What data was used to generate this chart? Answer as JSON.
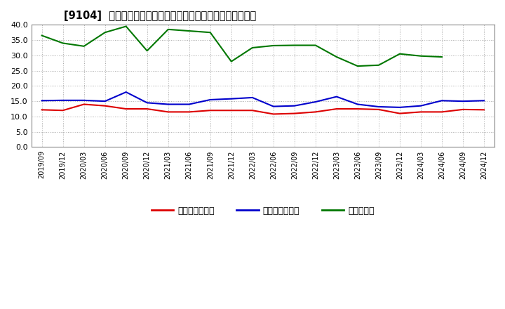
{
  "title": "[9104]  売上債権回転率、買入債務回転率、在庫回転率の推移",
  "x_labels": [
    "2019/09",
    "2019/12",
    "2020/03",
    "2020/06",
    "2020/09",
    "2020/12",
    "2021/03",
    "2021/06",
    "2021/09",
    "2021/12",
    "2022/03",
    "2022/06",
    "2022/09",
    "2022/12",
    "2023/03",
    "2023/06",
    "2023/09",
    "2023/12",
    "2024/03",
    "2024/06",
    "2024/09",
    "2024/12"
  ],
  "receivables_turnover": [
    12.2,
    12.0,
    14.0,
    13.5,
    12.5,
    12.5,
    11.5,
    11.5,
    12.0,
    12.0,
    12.0,
    10.8,
    11.0,
    11.5,
    12.5,
    12.5,
    12.3,
    11.0,
    11.5,
    11.5,
    12.3,
    12.2
  ],
  "payables_turnover": [
    15.2,
    15.3,
    15.3,
    15.0,
    18.0,
    14.5,
    14.0,
    14.0,
    15.5,
    15.8,
    16.2,
    13.3,
    13.5,
    14.8,
    16.5,
    14.0,
    13.2,
    13.0,
    13.5,
    15.2,
    15.0,
    15.2
  ],
  "inventory_turnover": [
    36.5,
    34.0,
    33.0,
    37.5,
    39.5,
    31.5,
    38.5,
    38.0,
    37.5,
    28.0,
    32.5,
    33.2,
    33.3,
    33.3,
    29.5,
    26.5,
    26.8,
    30.5,
    29.8,
    29.5,
    null,
    null
  ],
  "line_colors": {
    "receivables": "#dd0000",
    "payables": "#0000cc",
    "inventory": "#007700"
  },
  "legend_labels": {
    "receivables": "売上債権回転率",
    "payables": "買入債務回転率",
    "inventory": "在庫回転率"
  },
  "ylim": [
    0.0,
    40.0
  ],
  "yticks": [
    0.0,
    5.0,
    10.0,
    15.0,
    20.0,
    25.0,
    30.0,
    35.0,
    40.0
  ],
  "background_color": "#ffffff",
  "grid_color": "#aaaaaa",
  "line_width": 1.5
}
